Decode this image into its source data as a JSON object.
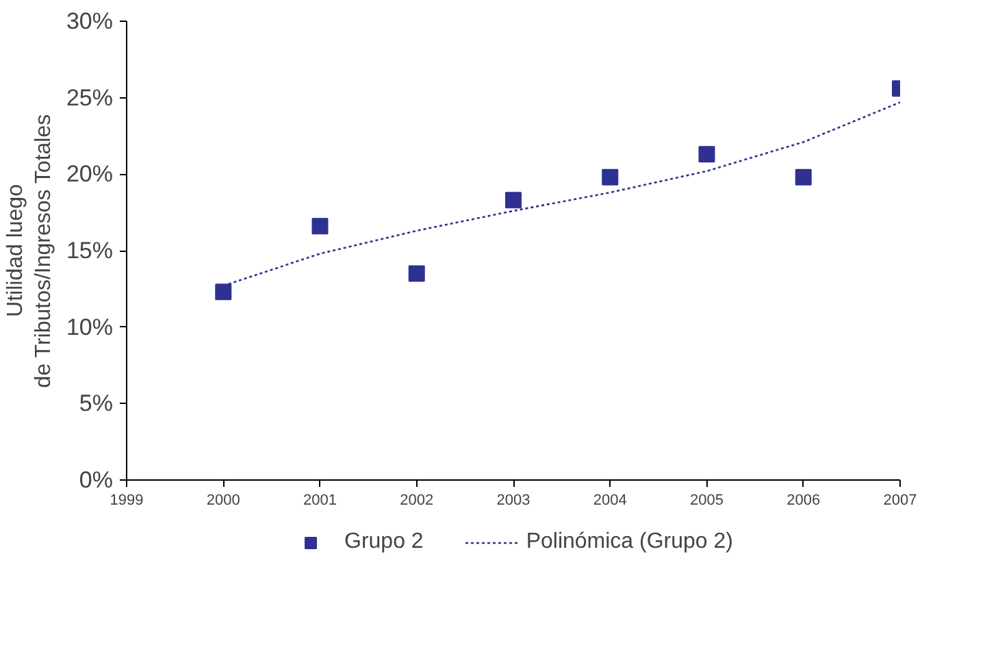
{
  "chart_data": {
    "type": "scatter",
    "ylabel": "Utilidad luego\nde Tributos/Ingresos Totales",
    "x": [
      2000,
      2001,
      2002,
      2003,
      2004,
      2005,
      2006,
      2007
    ],
    "series": [
      {
        "name": "Grupo 2",
        "color": "#2e3192",
        "values": [
          12.3,
          16.6,
          13.5,
          18.3,
          19.8,
          21.3,
          19.8,
          25.6
        ]
      },
      {
        "name": "Polinómica (Grupo 2)",
        "color": "#2e3192",
        "type": "line",
        "line_style": "dotted",
        "marker": "none",
        "values": [
          12.7,
          14.8,
          16.3,
          17.6,
          18.8,
          20.2,
          22.1,
          24.7
        ]
      }
    ],
    "xlim": [
      1999,
      2007
    ],
    "xticks": [
      1999,
      2000,
      2001,
      2002,
      2003,
      2004,
      2005,
      2006,
      2007
    ],
    "ylim": [
      0,
      30
    ],
    "yticks": [
      {
        "value": 0,
        "label": "0%"
      },
      {
        "value": 5,
        "label": "5%"
      },
      {
        "value": 10,
        "label": "10%"
      },
      {
        "value": 15,
        "label": "15%"
      },
      {
        "value": 20,
        "label": "20%"
      },
      {
        "value": 25,
        "label": "25%"
      },
      {
        "value": 30,
        "label": "30%"
      }
    ],
    "grid": false,
    "legend": "bottom",
    "marker": "square"
  }
}
